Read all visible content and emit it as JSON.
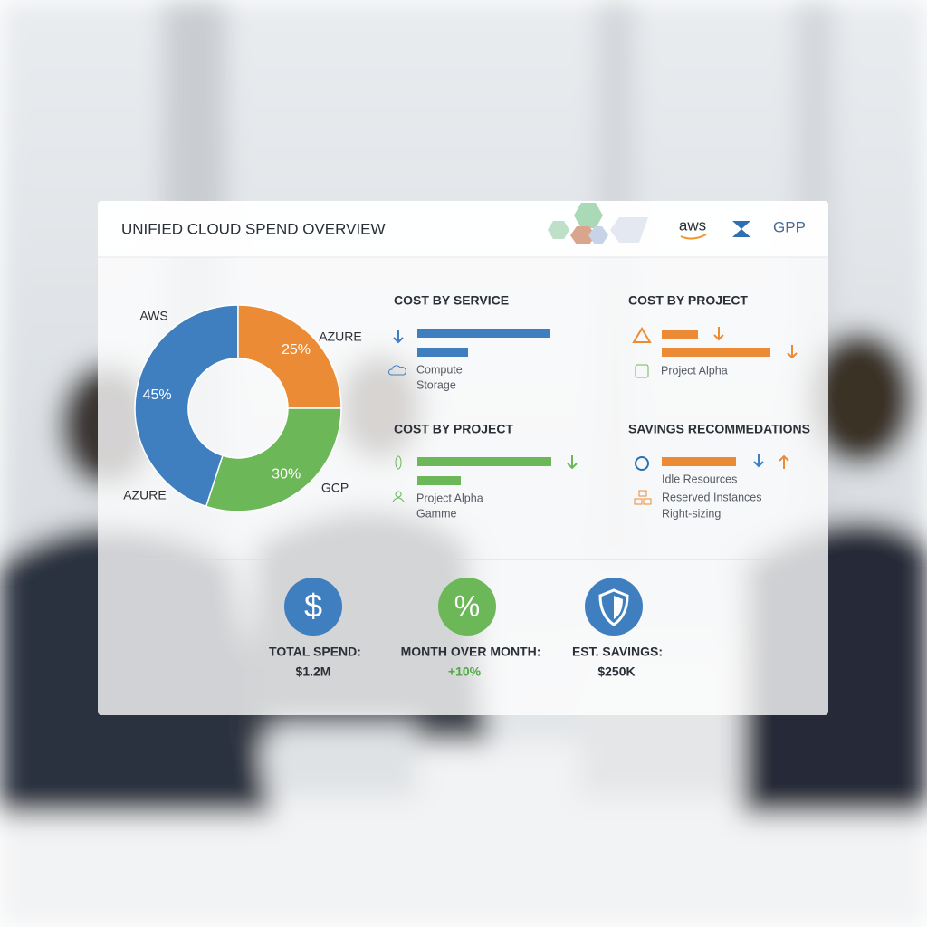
{
  "header": {
    "title": "UNIFIED CLOUD SPEND OVERVIEW",
    "logos": [
      "aws",
      "GPP"
    ]
  },
  "donut": {
    "type": "pie",
    "values": [
      45,
      25,
      30
    ],
    "value_labels": [
      "45%",
      "25%",
      "30%"
    ],
    "colors": [
      "#3f7fc0",
      "#ec8b35",
      "#6cb758"
    ],
    "callouts": [
      "AWS",
      "AZURE",
      "GCP",
      "AZURE"
    ]
  },
  "panels": [
    {
      "title": "COST BY SERVICE",
      "items": [
        "Compute",
        "Storage"
      ]
    },
    {
      "title": "COST BY PROJECT",
      "items": [
        "Project Alpha",
        "Gamme"
      ]
    },
    {
      "title": "COST BY PROJECT",
      "items": [
        "Project Alpha"
      ]
    },
    {
      "title": "SAVINGS RECOMMEDATIONS",
      "items": [
        "Idle Resources",
        "Reserved Instances",
        "Right-sizing"
      ]
    }
  ],
  "kpis": [
    {
      "icon": "$",
      "label": "TOTAL SPEND:",
      "value": "$1.2M"
    },
    {
      "icon": "%",
      "label": "MONTH OVER MONTH:",
      "value": "+10%"
    },
    {
      "label": "EST. SAVINGS:",
      "value": "$250K"
    }
  ]
}
